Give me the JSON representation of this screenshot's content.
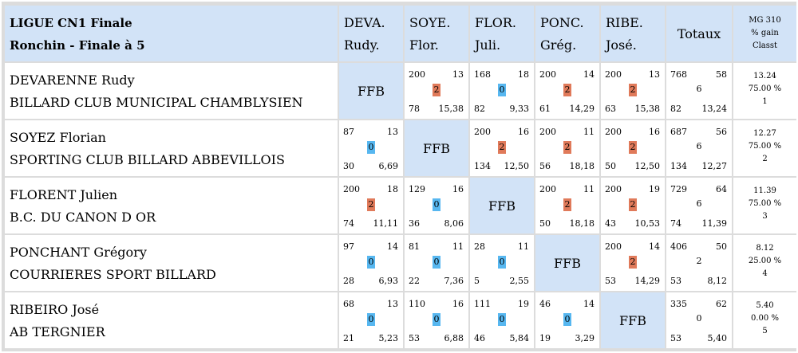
{
  "header": {
    "title_line1": "LIGUE CN1 Finale",
    "title_line2": "Ronchin - Finale à 5",
    "cols": [
      {
        "l1": "DEVA.",
        "l2": "Rudy."
      },
      {
        "l1": "SOYE.",
        "l2": "Flor."
      },
      {
        "l1": "FLOR.",
        "l2": "Juli."
      },
      {
        "l1": "PONC.",
        "l2": "Grég."
      },
      {
        "l1": "RIBE.",
        "l2": "José."
      }
    ],
    "totals": "Totaux",
    "mg1": "MG 310",
    "mg2": "% gain",
    "mg3": "Classt"
  },
  "self_label": "FFB",
  "colors": {
    "win": "#e07a5a",
    "loss": "#57b7f0",
    "header_bg": "#d2e3f7"
  },
  "rows": [
    {
      "name": "DEVARENNE Rudy",
      "club": "BILLARD CLUB MUNICIPAL CHAMBLYSIEN",
      "cells": [
        null,
        {
          "points": "200",
          "reprises": "13",
          "result": "2",
          "opp": "78",
          "avg": "15,38"
        },
        {
          "points": "168",
          "reprises": "18",
          "result": "0",
          "opp": "82",
          "avg": "9,33"
        },
        {
          "points": "200",
          "reprises": "14",
          "result": "2",
          "opp": "61",
          "avg": "14,29"
        },
        {
          "points": "200",
          "reprises": "13",
          "result": "2",
          "opp": "63",
          "avg": "15,38"
        }
      ],
      "total": {
        "points": "768",
        "reprises": "58",
        "result": "6",
        "opp": "82",
        "avg": "13,24"
      },
      "mg": {
        "avg": "13.24",
        "pct": "75.00 %",
        "rank": "1"
      }
    },
    {
      "name": "SOYEZ Florian",
      "club": "SPORTING CLUB BILLARD ABBEVILLOIS",
      "cells": [
        {
          "points": "87",
          "reprises": "13",
          "result": "0",
          "opp": "30",
          "avg": "6,69"
        },
        null,
        {
          "points": "200",
          "reprises": "16",
          "result": "2",
          "opp": "134",
          "avg": "12,50"
        },
        {
          "points": "200",
          "reprises": "11",
          "result": "2",
          "opp": "56",
          "avg": "18,18"
        },
        {
          "points": "200",
          "reprises": "16",
          "result": "2",
          "opp": "50",
          "avg": "12,50"
        }
      ],
      "total": {
        "points": "687",
        "reprises": "56",
        "result": "6",
        "opp": "134",
        "avg": "12,27"
      },
      "mg": {
        "avg": "12.27",
        "pct": "75.00 %",
        "rank": "2"
      }
    },
    {
      "name": "FLORENT Julien",
      "club": "B.C. DU CANON D OR",
      "cells": [
        {
          "points": "200",
          "reprises": "18",
          "result": "2",
          "opp": "74",
          "avg": "11,11"
        },
        {
          "points": "129",
          "reprises": "16",
          "result": "0",
          "opp": "36",
          "avg": "8,06"
        },
        null,
        {
          "points": "200",
          "reprises": "11",
          "result": "2",
          "opp": "50",
          "avg": "18,18"
        },
        {
          "points": "200",
          "reprises": "19",
          "result": "2",
          "opp": "43",
          "avg": "10,53"
        }
      ],
      "total": {
        "points": "729",
        "reprises": "64",
        "result": "6",
        "opp": "74",
        "avg": "11,39"
      },
      "mg": {
        "avg": "11.39",
        "pct": "75.00 %",
        "rank": "3"
      }
    },
    {
      "name": "PONCHANT Grégory",
      "club": "COURRIERES SPORT BILLARD",
      "cells": [
        {
          "points": "97",
          "reprises": "14",
          "result": "0",
          "opp": "28",
          "avg": "6,93"
        },
        {
          "points": "81",
          "reprises": "11",
          "result": "0",
          "opp": "22",
          "avg": "7,36"
        },
        {
          "points": "28",
          "reprises": "11",
          "result": "0",
          "opp": "5",
          "avg": "2,55"
        },
        null,
        {
          "points": "200",
          "reprises": "14",
          "result": "2",
          "opp": "53",
          "avg": "14,29"
        }
      ],
      "total": {
        "points": "406",
        "reprises": "50",
        "result": "2",
        "opp": "53",
        "avg": "8,12"
      },
      "mg": {
        "avg": "8.12",
        "pct": "25.00 %",
        "rank": "4"
      }
    },
    {
      "name": "RIBEIRO José",
      "club": "AB TERGNIER",
      "cells": [
        {
          "points": "68",
          "reprises": "13",
          "result": "0",
          "opp": "21",
          "avg": "5,23"
        },
        {
          "points": "110",
          "reprises": "16",
          "result": "0",
          "opp": "53",
          "avg": "6,88"
        },
        {
          "points": "111",
          "reprises": "19",
          "result": "0",
          "opp": "46",
          "avg": "5,84"
        },
        {
          "points": "46",
          "reprises": "14",
          "result": "0",
          "opp": "19",
          "avg": "3,29"
        },
        null
      ],
      "total": {
        "points": "335",
        "reprises": "62",
        "result": "0",
        "opp": "53",
        "avg": "5,40"
      },
      "mg": {
        "avg": "5.40",
        "pct": "0.00 %",
        "rank": "5"
      }
    }
  ]
}
